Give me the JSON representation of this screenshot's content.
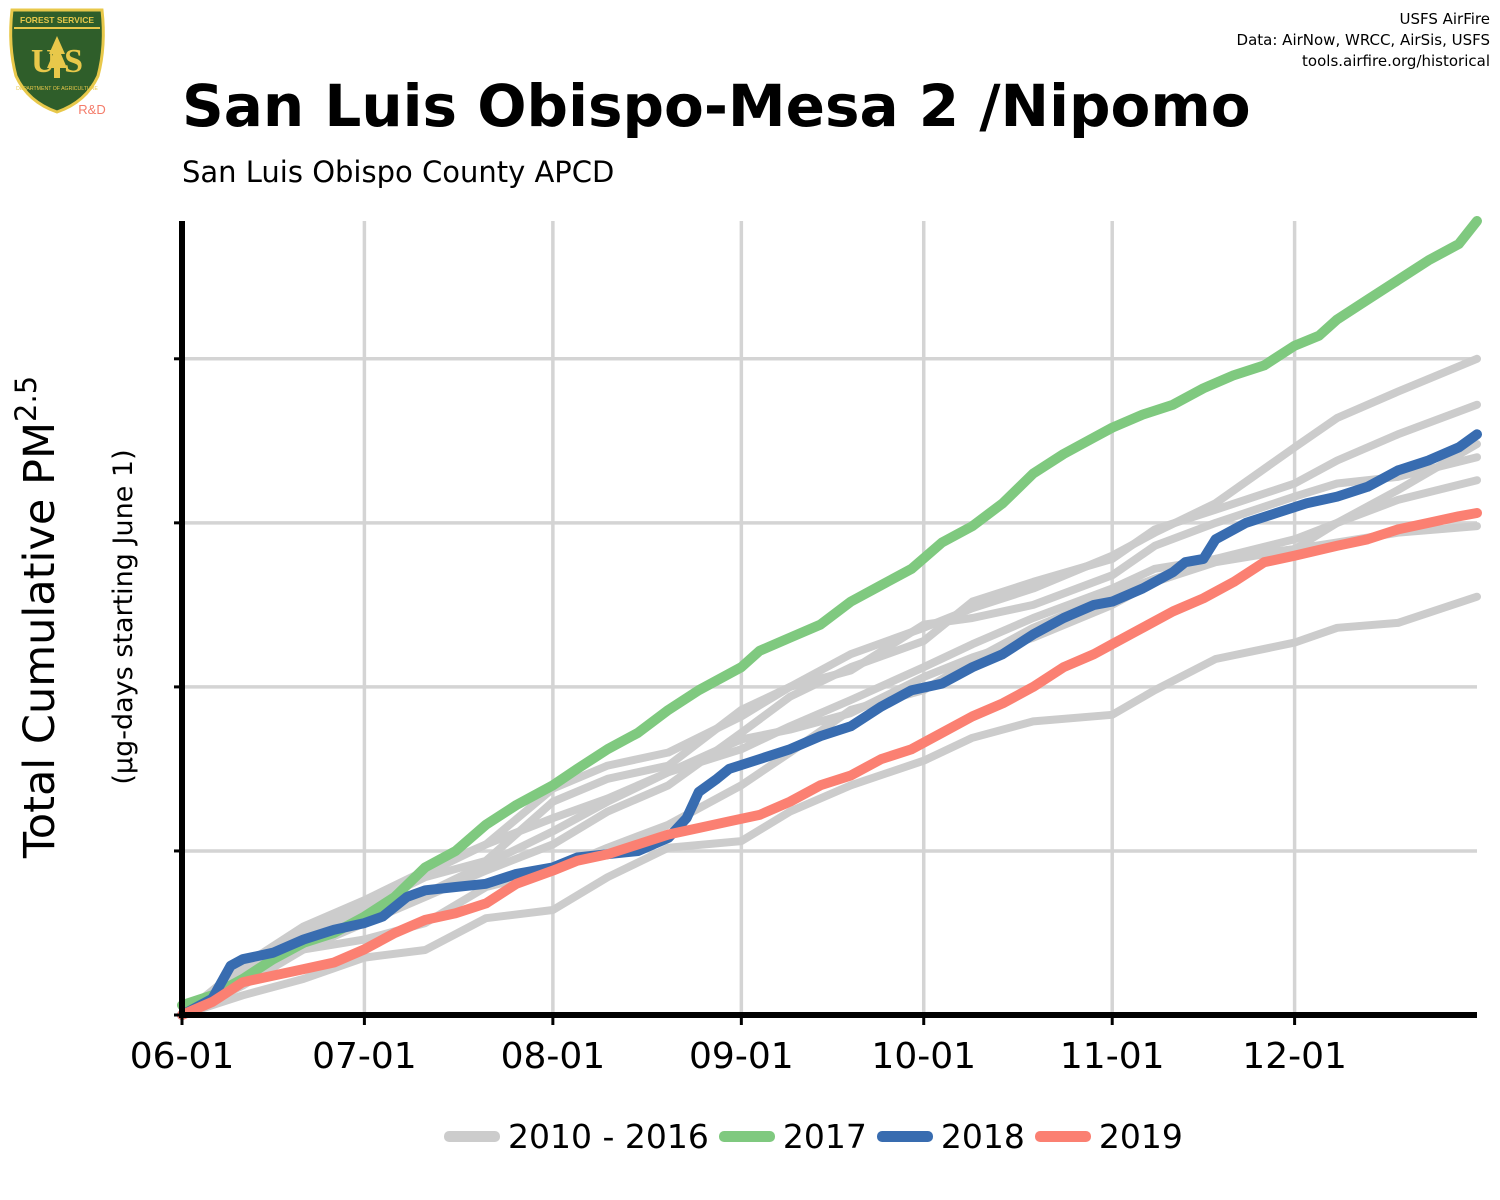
{
  "header": {
    "title": "San Luis Obispo-Mesa 2 /Nipomo",
    "subtitle": "San Luis Obispo County APCD",
    "credits": [
      "USFS AirFire",
      "Data: AirNow, WRCC, AirSis, USFS",
      "tools.airfire.org/historical"
    ]
  },
  "logo": {
    "top_text": "FOREST SERVICE",
    "letters": "U S",
    "bottom_text": "DEPARTMENT OF AGRICULTURE",
    "badge": "R&D",
    "colors": {
      "shield": "#2f5e2a",
      "gold": "#e8c84a",
      "badge": "#f47c6a"
    }
  },
  "chart_data": {
    "type": "line",
    "ylabel_main": "Total Cumulative PM",
    "ylabel_sub": "2.5",
    "ylabel_secondary": "(µg-days starting June 1)",
    "x_tick_labels": [
      "06-01",
      "07-01",
      "08-01",
      "09-01",
      "10-01",
      "11-01",
      "12-01"
    ],
    "x_tick_days": [
      0,
      30,
      61,
      92,
      122,
      153,
      183
    ],
    "xlim": [
      0,
      213
    ],
    "ylim": [
      0,
      2420
    ],
    "y_gridlines": [
      0,
      500,
      1000,
      1500,
      2000
    ],
    "y_tick_labels_shown": false,
    "grid": true,
    "legend_position": "bottom",
    "legend": [
      {
        "label": "2010 - 2016",
        "color": "#cccccc"
      },
      {
        "label": "2017",
        "color": "#7fc97f"
      },
      {
        "label": "2018",
        "color": "#386cb0"
      },
      {
        "label": "2019",
        "color": "#fb8072"
      }
    ],
    "series": [
      {
        "group": "2010 - 2016",
        "color": "#cccccc",
        "points": [
          [
            0,
            0
          ],
          [
            10,
            60
          ],
          [
            20,
            110
          ],
          [
            30,
            175
          ],
          [
            40,
            198
          ],
          [
            50,
            295
          ],
          [
            61,
            320
          ],
          [
            70,
            420
          ],
          [
            80,
            510
          ],
          [
            92,
            530
          ],
          [
            100,
            620
          ],
          [
            110,
            700
          ],
          [
            122,
            775
          ],
          [
            130,
            845
          ],
          [
            140,
            895
          ],
          [
            153,
            915
          ],
          [
            160,
            990
          ],
          [
            170,
            1085
          ],
          [
            183,
            1135
          ],
          [
            190,
            1180
          ],
          [
            200,
            1195
          ],
          [
            213,
            1275
          ]
        ]
      },
      {
        "group": "2010 - 2016",
        "color": "#cccccc",
        "points": [
          [
            0,
            0
          ],
          [
            10,
            140
          ],
          [
            20,
            200
          ],
          [
            30,
            230
          ],
          [
            40,
            280
          ],
          [
            50,
            390
          ],
          [
            61,
            440
          ],
          [
            70,
            510
          ],
          [
            80,
            580
          ],
          [
            92,
            700
          ],
          [
            100,
            800
          ],
          [
            110,
            930
          ],
          [
            122,
            990
          ],
          [
            130,
            1080
          ],
          [
            140,
            1180
          ],
          [
            153,
            1280
          ],
          [
            160,
            1330
          ],
          [
            170,
            1390
          ],
          [
            183,
            1450
          ],
          [
            190,
            1500
          ],
          [
            200,
            1570
          ],
          [
            213,
            1630
          ]
        ]
      },
      {
        "group": "2010 - 2016",
        "color": "#cccccc",
        "points": [
          [
            0,
            0
          ],
          [
            10,
            100
          ],
          [
            20,
            200
          ],
          [
            30,
            280
          ],
          [
            40,
            360
          ],
          [
            50,
            440
          ],
          [
            61,
            520
          ],
          [
            70,
            620
          ],
          [
            80,
            700
          ],
          [
            92,
            860
          ],
          [
            100,
            970
          ],
          [
            110,
            1060
          ],
          [
            122,
            1140
          ],
          [
            130,
            1260
          ],
          [
            140,
            1320
          ],
          [
            153,
            1390
          ],
          [
            160,
            1480
          ],
          [
            170,
            1540
          ],
          [
            183,
            1620
          ],
          [
            190,
            1690
          ],
          [
            200,
            1770
          ],
          [
            213,
            1860
          ]
        ]
      },
      {
        "group": "2010 - 2016",
        "color": "#cccccc",
        "points": [
          [
            0,
            0
          ],
          [
            10,
            130
          ],
          [
            20,
            250
          ],
          [
            30,
            340
          ],
          [
            40,
            430
          ],
          [
            50,
            520
          ],
          [
            61,
            690
          ],
          [
            70,
            760
          ],
          [
            80,
            800
          ],
          [
            92,
            910
          ],
          [
            100,
            1000
          ],
          [
            110,
            1100
          ],
          [
            122,
            1180
          ],
          [
            130,
            1240
          ],
          [
            140,
            1300
          ],
          [
            153,
            1400
          ],
          [
            160,
            1470
          ],
          [
            170,
            1560
          ],
          [
            183,
            1730
          ],
          [
            190,
            1820
          ],
          [
            200,
            1900
          ],
          [
            213,
            2000
          ]
        ]
      },
      {
        "group": "2010 - 2016",
        "color": "#cccccc",
        "points": [
          [
            0,
            0
          ],
          [
            10,
            120
          ],
          [
            20,
            220
          ],
          [
            30,
            330
          ],
          [
            40,
            420
          ],
          [
            50,
            470
          ],
          [
            61,
            650
          ],
          [
            70,
            720
          ],
          [
            80,
            760
          ],
          [
            92,
            930
          ],
          [
            100,
            1000
          ],
          [
            110,
            1050
          ],
          [
            122,
            1190
          ],
          [
            130,
            1210
          ],
          [
            140,
            1250
          ],
          [
            153,
            1340
          ],
          [
            160,
            1430
          ],
          [
            170,
            1500
          ],
          [
            183,
            1580
          ],
          [
            190,
            1620
          ],
          [
            200,
            1640
          ],
          [
            213,
            1700
          ]
        ]
      },
      {
        "group": "2010 - 2016",
        "color": "#cccccc",
        "points": [
          [
            0,
            0
          ],
          [
            10,
            90
          ],
          [
            20,
            200
          ],
          [
            30,
            290
          ],
          [
            40,
            370
          ],
          [
            50,
            460
          ],
          [
            61,
            560
          ],
          [
            70,
            650
          ],
          [
            80,
            740
          ],
          [
            92,
            810
          ],
          [
            100,
            880
          ],
          [
            110,
            960
          ],
          [
            122,
            1060
          ],
          [
            130,
            1130
          ],
          [
            140,
            1210
          ],
          [
            153,
            1300
          ],
          [
            160,
            1360
          ],
          [
            170,
            1390
          ],
          [
            183,
            1420
          ],
          [
            190,
            1440
          ],
          [
            200,
            1470
          ],
          [
            213,
            1490
          ]
        ]
      },
      {
        "group": "2010 - 2016",
        "color": "#cccccc",
        "points": [
          [
            0,
            0
          ],
          [
            10,
            150
          ],
          [
            20,
            270
          ],
          [
            30,
            350
          ],
          [
            40,
            440
          ],
          [
            50,
            520
          ],
          [
            61,
            600
          ],
          [
            70,
            660
          ],
          [
            80,
            740
          ],
          [
            92,
            840
          ],
          [
            100,
            870
          ],
          [
            110,
            920
          ],
          [
            122,
            1030
          ],
          [
            130,
            1090
          ],
          [
            140,
            1150
          ],
          [
            153,
            1250
          ],
          [
            160,
            1320
          ],
          [
            170,
            1380
          ],
          [
            183,
            1420
          ],
          [
            190,
            1500
          ],
          [
            200,
            1600
          ],
          [
            213,
            1740
          ]
        ]
      },
      {
        "group": "2017",
        "color": "#7fc97f",
        "points": [
          [
            0,
            30
          ],
          [
            5,
            60
          ],
          [
            10,
            110
          ],
          [
            15,
            170
          ],
          [
            20,
            220
          ],
          [
            25,
            250
          ],
          [
            30,
            300
          ],
          [
            35,
            360
          ],
          [
            40,
            450
          ],
          [
            45,
            500
          ],
          [
            50,
            580
          ],
          [
            55,
            640
          ],
          [
            61,
            700
          ],
          [
            65,
            750
          ],
          [
            70,
            810
          ],
          [
            75,
            860
          ],
          [
            80,
            930
          ],
          [
            85,
            990
          ],
          [
            92,
            1060
          ],
          [
            95,
            1110
          ],
          [
            100,
            1150
          ],
          [
            105,
            1190
          ],
          [
            110,
            1260
          ],
          [
            115,
            1310
          ],
          [
            120,
            1360
          ],
          [
            125,
            1440
          ],
          [
            130,
            1490
          ],
          [
            135,
            1560
          ],
          [
            140,
            1650
          ],
          [
            145,
            1710
          ],
          [
            150,
            1760
          ],
          [
            153,
            1790
          ],
          [
            158,
            1830
          ],
          [
            163,
            1860
          ],
          [
            168,
            1910
          ],
          [
            173,
            1950
          ],
          [
            178,
            1980
          ],
          [
            183,
            2040
          ],
          [
            187,
            2070
          ],
          [
            190,
            2120
          ],
          [
            195,
            2180
          ],
          [
            200,
            2240
          ],
          [
            205,
            2300
          ],
          [
            210,
            2350
          ],
          [
            213,
            2420
          ]
        ]
      },
      {
        "group": "2018",
        "color": "#386cb0",
        "points": [
          [
            0,
            0
          ],
          [
            5,
            50
          ],
          [
            8,
            150
          ],
          [
            10,
            170
          ],
          [
            15,
            190
          ],
          [
            20,
            230
          ],
          [
            25,
            260
          ],
          [
            30,
            280
          ],
          [
            33,
            300
          ],
          [
            37,
            360
          ],
          [
            40,
            380
          ],
          [
            45,
            390
          ],
          [
            50,
            400
          ],
          [
            55,
            430
          ],
          [
            61,
            450
          ],
          [
            65,
            480
          ],
          [
            70,
            490
          ],
          [
            75,
            500
          ],
          [
            80,
            540
          ],
          [
            83,
            600
          ],
          [
            85,
            680
          ],
          [
            88,
            720
          ],
          [
            90,
            750
          ],
          [
            95,
            780
          ],
          [
            100,
            810
          ],
          [
            105,
            850
          ],
          [
            110,
            880
          ],
          [
            115,
            940
          ],
          [
            120,
            990
          ],
          [
            125,
            1010
          ],
          [
            130,
            1060
          ],
          [
            135,
            1100
          ],
          [
            140,
            1160
          ],
          [
            145,
            1210
          ],
          [
            150,
            1250
          ],
          [
            153,
            1260
          ],
          [
            158,
            1300
          ],
          [
            163,
            1350
          ],
          [
            165,
            1380
          ],
          [
            168,
            1390
          ],
          [
            170,
            1450
          ],
          [
            175,
            1500
          ],
          [
            180,
            1530
          ],
          [
            185,
            1560
          ],
          [
            190,
            1580
          ],
          [
            195,
            1610
          ],
          [
            200,
            1660
          ],
          [
            205,
            1690
          ],
          [
            210,
            1730
          ],
          [
            213,
            1770
          ]
        ]
      },
      {
        "group": "2019",
        "color": "#fb8072",
        "points": [
          [
            0,
            0
          ],
          [
            5,
            40
          ],
          [
            10,
            100
          ],
          [
            15,
            120
          ],
          [
            20,
            140
          ],
          [
            25,
            160
          ],
          [
            30,
            200
          ],
          [
            35,
            250
          ],
          [
            40,
            290
          ],
          [
            45,
            310
          ],
          [
            50,
            340
          ],
          [
            55,
            400
          ],
          [
            61,
            440
          ],
          [
            65,
            470
          ],
          [
            70,
            490
          ],
          [
            75,
            520
          ],
          [
            80,
            550
          ],
          [
            85,
            570
          ],
          [
            90,
            590
          ],
          [
            95,
            610
          ],
          [
            100,
            650
          ],
          [
            105,
            700
          ],
          [
            110,
            730
          ],
          [
            115,
            780
          ],
          [
            120,
            810
          ],
          [
            125,
            860
          ],
          [
            130,
            910
          ],
          [
            135,
            950
          ],
          [
            140,
            1000
          ],
          [
            145,
            1060
          ],
          [
            150,
            1100
          ],
          [
            153,
            1130
          ],
          [
            158,
            1180
          ],
          [
            163,
            1230
          ],
          [
            168,
            1270
          ],
          [
            173,
            1320
          ],
          [
            178,
            1380
          ],
          [
            183,
            1400
          ],
          [
            190,
            1430
          ],
          [
            195,
            1450
          ],
          [
            200,
            1480
          ],
          [
            205,
            1500
          ],
          [
            210,
            1520
          ],
          [
            213,
            1530
          ]
        ]
      }
    ]
  }
}
